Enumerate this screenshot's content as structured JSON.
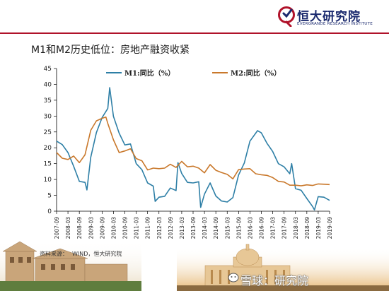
{
  "header": {
    "logo_cn": "恒大研究院",
    "logo_en": "EVERGRANDE RESEARCH INSTITUTE",
    "brand_color": "#b0122a",
    "logo_color": "#1b2a6e"
  },
  "page_title": "M1和M2历史低位：房地产融资收紧",
  "source": {
    "label": "资料来源：",
    "text": "WIND，恒大研究院"
  },
  "watermark": {
    "icon": "snowball-icon",
    "text": "雪球：研究院"
  },
  "chart_data": {
    "type": "line",
    "title": "",
    "xlabel": "",
    "ylabel": "",
    "ylim": [
      0,
      45
    ],
    "yticks": [
      0,
      5,
      10,
      15,
      20,
      25,
      30,
      35,
      40,
      45
    ],
    "xticks": [
      "2007-09",
      "2008-03",
      "2008-09",
      "2009-03",
      "2009-09",
      "2010-03",
      "2010-09",
      "2011-03",
      "2011-09",
      "2012-03",
      "2012-09",
      "2013-03",
      "2013-09",
      "2014-03",
      "2014-09",
      "2015-03",
      "2015-09",
      "2016-03",
      "2016-09",
      "2017-03",
      "2017-09",
      "2018-03",
      "2018-09",
      "2019-03",
      "2019-09"
    ],
    "grid": false,
    "legend_position": "top",
    "series": [
      {
        "name": "M1:同比（%）",
        "color": "#2e7fa6",
        "points": [
          [
            "2007-09",
            22.1
          ],
          [
            "2007-12",
            21.0
          ],
          [
            "2008-03",
            18.5
          ],
          [
            "2008-06",
            14.2
          ],
          [
            "2008-09",
            9.4
          ],
          [
            "2008-12",
            9.1
          ],
          [
            "2009-01",
            6.7
          ],
          [
            "2009-03",
            17.0
          ],
          [
            "2009-06",
            24.8
          ],
          [
            "2009-09",
            29.5
          ],
          [
            "2009-12",
            32.4
          ],
          [
            "2010-01",
            38.96
          ],
          [
            "2010-03",
            29.9
          ],
          [
            "2010-06",
            24.6
          ],
          [
            "2010-09",
            20.9
          ],
          [
            "2010-12",
            21.2
          ],
          [
            "2011-03",
            15.0
          ],
          [
            "2011-06",
            13.1
          ],
          [
            "2011-09",
            8.9
          ],
          [
            "2011-12",
            7.9
          ],
          [
            "2012-01",
            3.1
          ],
          [
            "2012-03",
            4.4
          ],
          [
            "2012-06",
            4.7
          ],
          [
            "2012-09",
            7.3
          ],
          [
            "2012-12",
            6.5
          ],
          [
            "2013-01",
            15.3
          ],
          [
            "2013-03",
            11.9
          ],
          [
            "2013-06",
            9.1
          ],
          [
            "2013-09",
            8.9
          ],
          [
            "2013-12",
            9.3
          ],
          [
            "2014-01",
            1.2
          ],
          [
            "2014-03",
            5.4
          ],
          [
            "2014-06",
            8.9
          ],
          [
            "2014-09",
            4.8
          ],
          [
            "2014-12",
            3.2
          ],
          [
            "2015-03",
            2.9
          ],
          [
            "2015-06",
            4.3
          ],
          [
            "2015-09",
            11.4
          ],
          [
            "2015-12",
            15.2
          ],
          [
            "2016-03",
            22.1
          ],
          [
            "2016-06",
            24.6
          ],
          [
            "2016-07",
            25.4
          ],
          [
            "2016-09",
            24.7
          ],
          [
            "2016-12",
            21.4
          ],
          [
            "2017-03",
            18.8
          ],
          [
            "2017-06",
            15.0
          ],
          [
            "2017-09",
            14.0
          ],
          [
            "2017-12",
            11.8
          ],
          [
            "2018-01",
            15.0
          ],
          [
            "2018-03",
            7.1
          ],
          [
            "2018-06",
            6.6
          ],
          [
            "2018-09",
            4.0
          ],
          [
            "2018-12",
            1.5
          ],
          [
            "2019-01",
            0.4
          ],
          [
            "2019-03",
            4.6
          ],
          [
            "2019-06",
            4.4
          ],
          [
            "2019-09",
            3.4
          ]
        ]
      },
      {
        "name": "M2:同比（%）",
        "color": "#c9782b",
        "points": [
          [
            "2007-09",
            18.5
          ],
          [
            "2007-12",
            16.7
          ],
          [
            "2008-03",
            16.3
          ],
          [
            "2008-06",
            17.4
          ],
          [
            "2008-09",
            15.3
          ],
          [
            "2008-12",
            17.8
          ],
          [
            "2009-03",
            25.5
          ],
          [
            "2009-06",
            28.5
          ],
          [
            "2009-09",
            29.3
          ],
          [
            "2009-11",
            29.7
          ],
          [
            "2009-12",
            27.7
          ],
          [
            "2010-03",
            22.5
          ],
          [
            "2010-06",
            18.5
          ],
          [
            "2010-09",
            19.0
          ],
          [
            "2010-12",
            19.7
          ],
          [
            "2011-03",
            16.6
          ],
          [
            "2011-06",
            15.9
          ],
          [
            "2011-09",
            13.0
          ],
          [
            "2011-12",
            13.6
          ],
          [
            "2012-03",
            13.4
          ],
          [
            "2012-06",
            13.6
          ],
          [
            "2012-09",
            14.8
          ],
          [
            "2012-12",
            13.8
          ],
          [
            "2013-03",
            15.7
          ],
          [
            "2013-06",
            14.0
          ],
          [
            "2013-09",
            14.2
          ],
          [
            "2013-12",
            13.6
          ],
          [
            "2014-03",
            12.1
          ],
          [
            "2014-06",
            14.7
          ],
          [
            "2014-09",
            12.9
          ],
          [
            "2014-12",
            12.2
          ],
          [
            "2015-03",
            11.6
          ],
          [
            "2015-06",
            10.2
          ],
          [
            "2015-09",
            13.1
          ],
          [
            "2015-12",
            13.3
          ],
          [
            "2016-03",
            13.4
          ],
          [
            "2016-06",
            11.8
          ],
          [
            "2016-09",
            11.5
          ],
          [
            "2016-12",
            11.3
          ],
          [
            "2017-03",
            10.6
          ],
          [
            "2017-06",
            9.4
          ],
          [
            "2017-09",
            9.2
          ],
          [
            "2017-12",
            8.2
          ],
          [
            "2018-03",
            8.2
          ],
          [
            "2018-06",
            8.0
          ],
          [
            "2018-09",
            8.3
          ],
          [
            "2018-12",
            8.1
          ],
          [
            "2019-03",
            8.6
          ],
          [
            "2019-06",
            8.5
          ],
          [
            "2019-09",
            8.4
          ]
        ]
      }
    ]
  }
}
